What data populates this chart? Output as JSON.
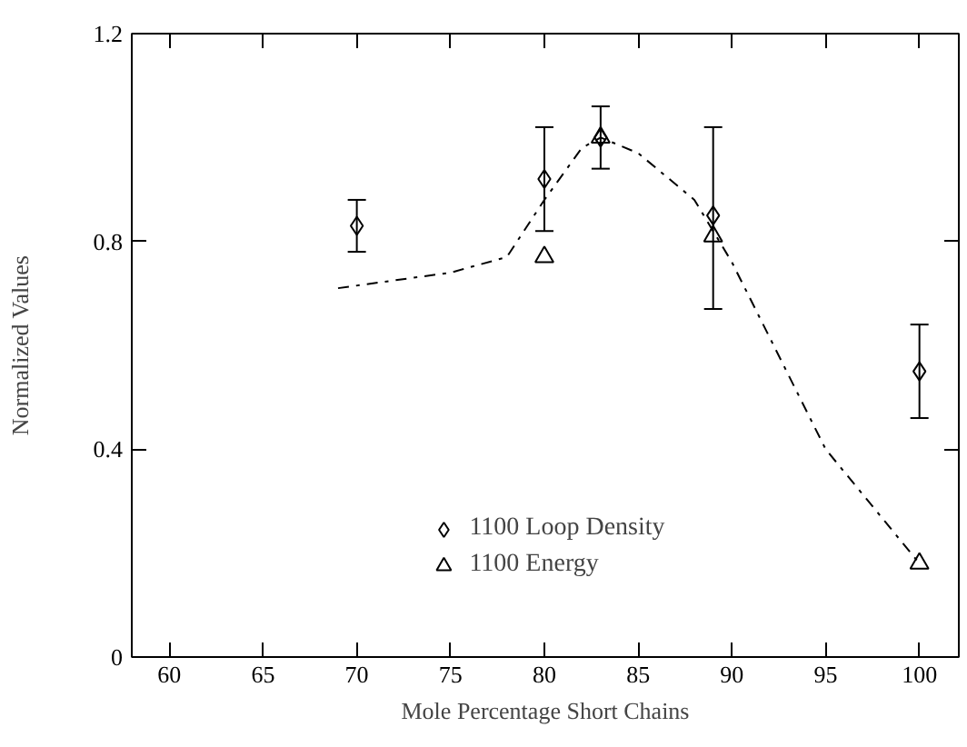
{
  "chart_data": {
    "type": "scatter",
    "xlabel": "Mole Percentage Short Chains",
    "ylabel": "Normalized Values",
    "xlim": [
      58,
      102.1
    ],
    "ylim": [
      0,
      1.2
    ],
    "xticks": [
      60,
      65,
      70,
      75,
      80,
      85,
      90,
      95,
      100
    ],
    "yticks": [
      0,
      0.4,
      0.8,
      1.2
    ],
    "series": [
      {
        "name": "1100 Loop Density",
        "color": "#000000",
        "marker": "diamond",
        "x": [
          70,
          80,
          83,
          89,
          100
        ],
        "values": [
          0.83,
          0.92,
          1.0,
          0.85,
          0.55
        ],
        "errors": [
          [
            0.78,
            0.88
          ],
          [
            0.82,
            1.02
          ],
          [
            0.94,
            1.06
          ],
          [
            0.67,
            1.02
          ],
          [
            0.46,
            0.64
          ]
        ]
      },
      {
        "name": "1100 Energy",
        "color": "#000000",
        "marker": "triangle",
        "x": [
          80,
          83,
          89,
          100
        ],
        "values": [
          0.77,
          1.0,
          0.81,
          0.18
        ]
      },
      {
        "type": "line",
        "color": "#000000",
        "line_style": "dashdot",
        "marker": "none",
        "x": [
          69,
          75,
          78,
          80,
          82,
          83,
          85,
          88,
          90,
          95,
          100
        ],
        "values": [
          0.71,
          0.74,
          0.77,
          0.88,
          0.98,
          1.0,
          0.97,
          0.88,
          0.76,
          0.4,
          0.18
        ]
      }
    ],
    "legend": "bottom",
    "grid": false
  }
}
